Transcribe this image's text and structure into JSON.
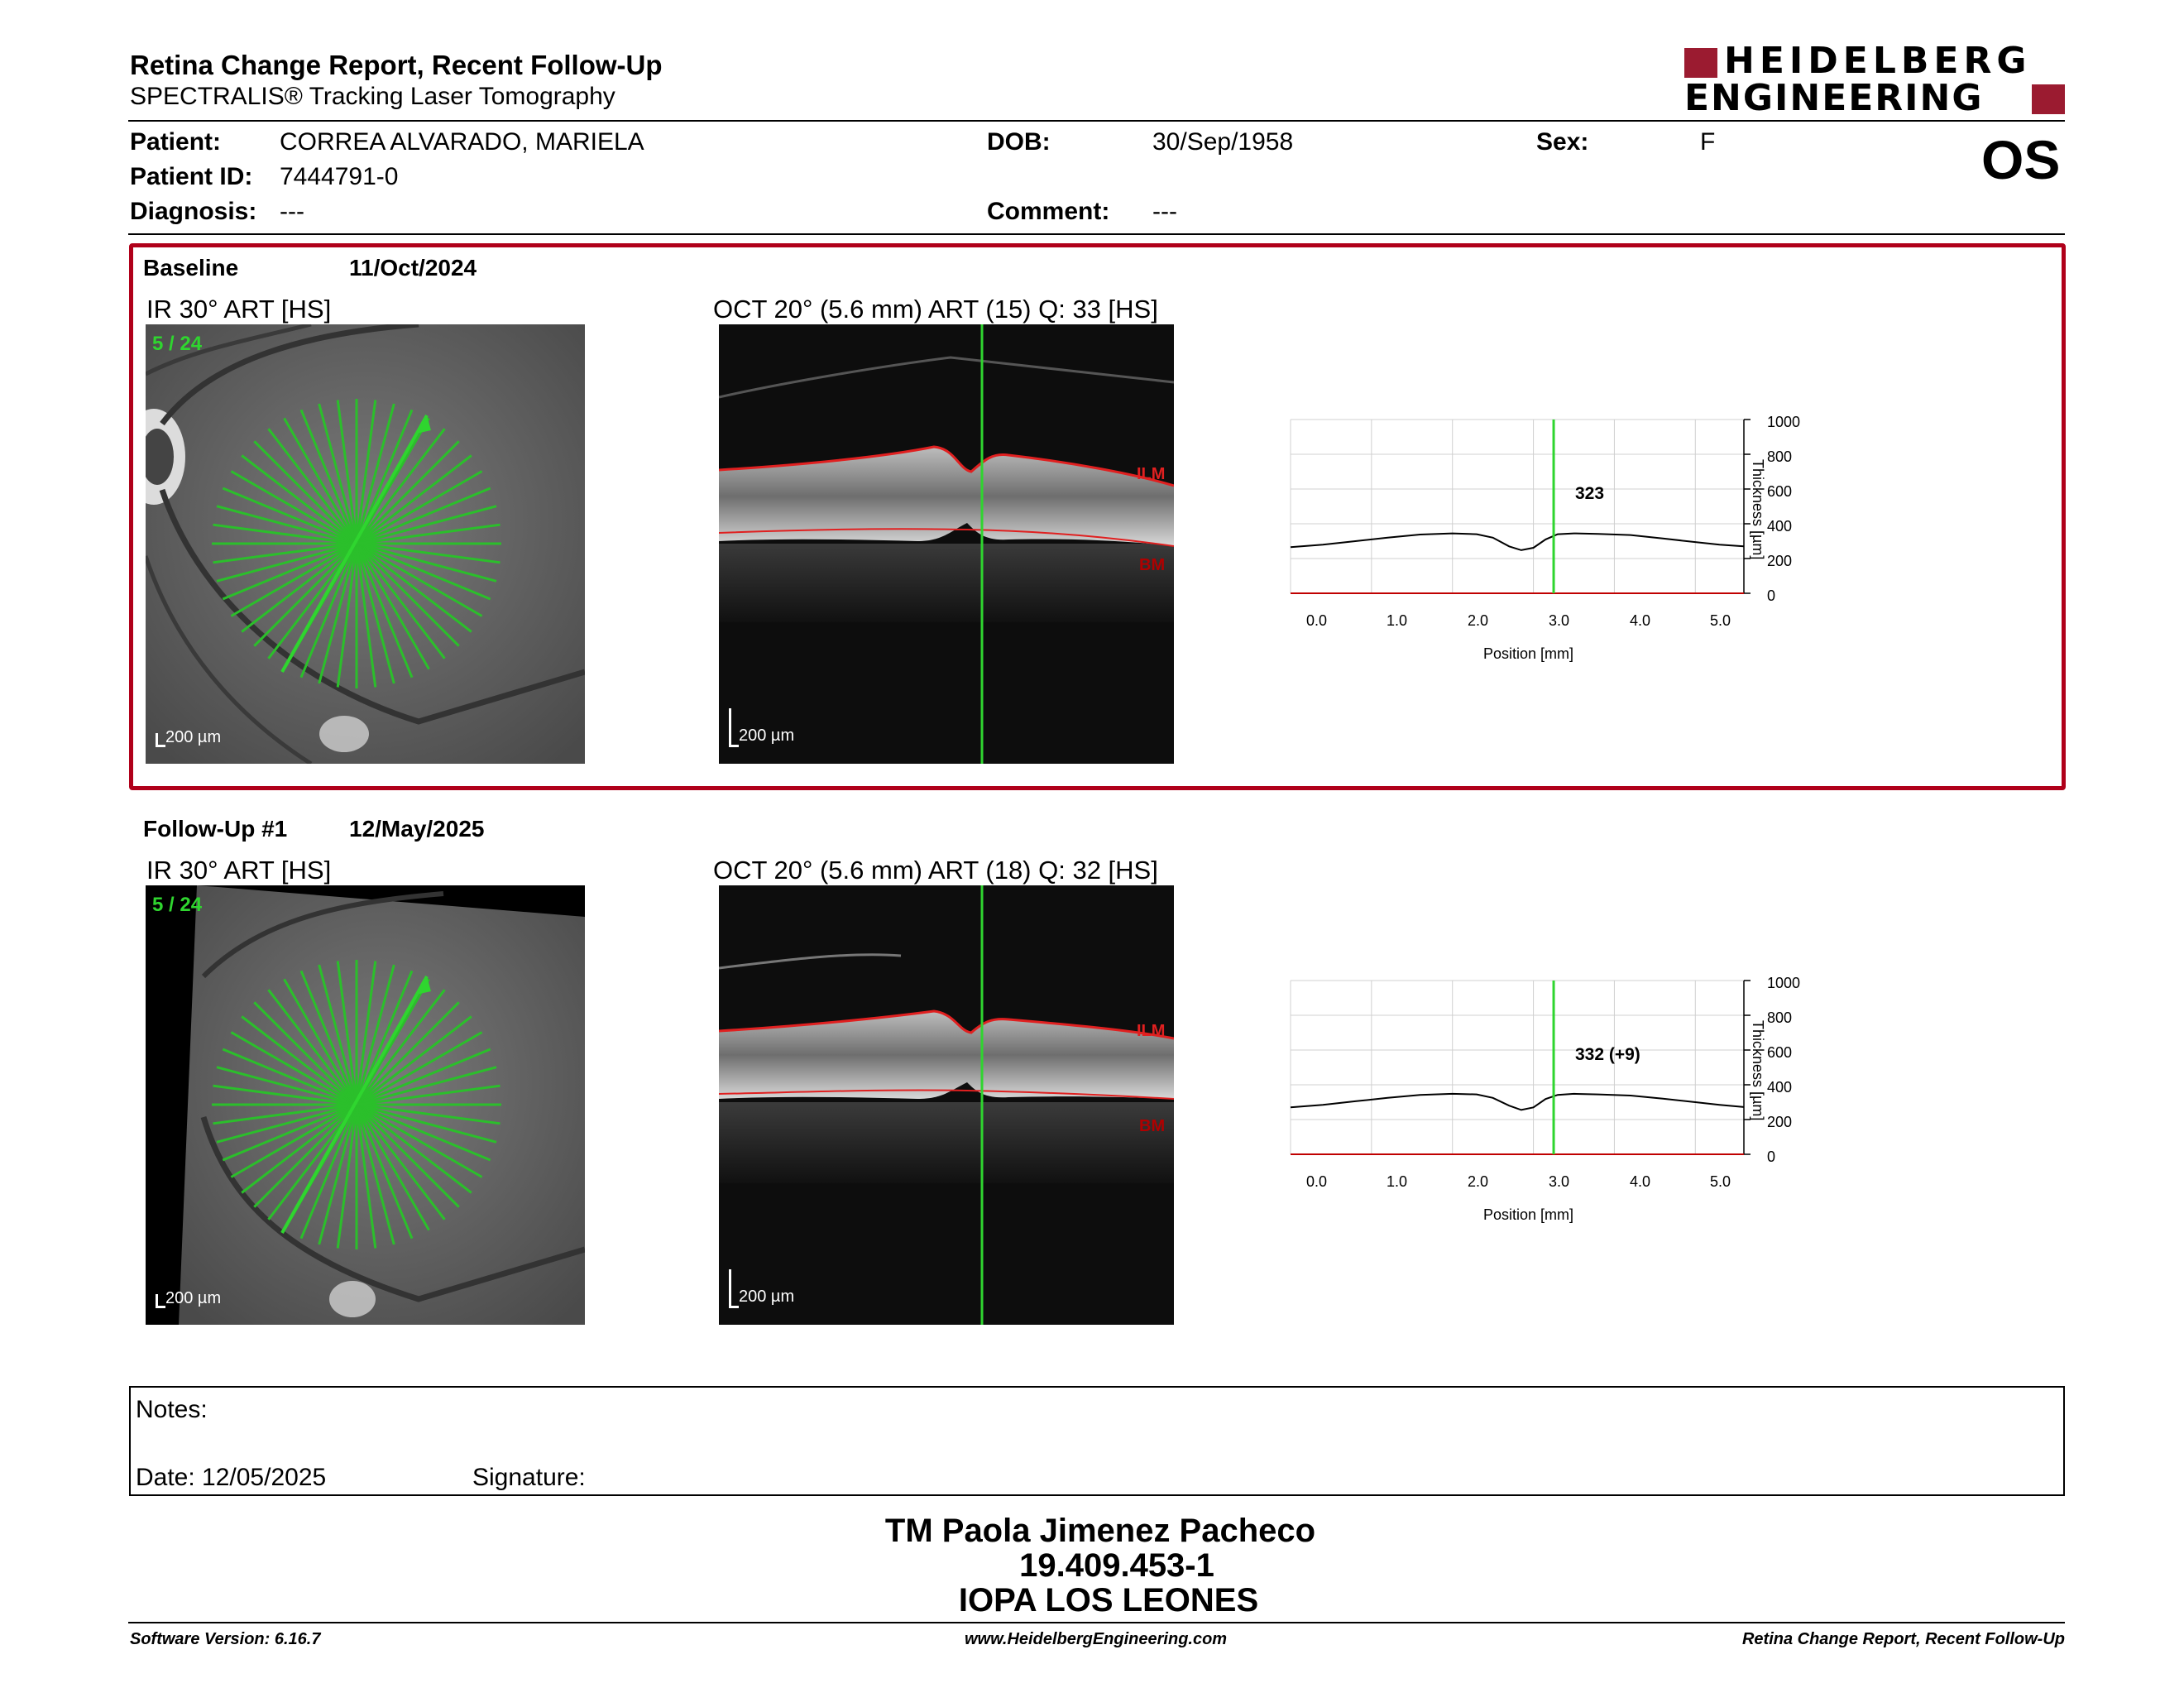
{
  "header": {
    "title": "Retina Change Report, Recent Follow-Up",
    "subtitle": "SPECTRALIS® Tracking Laser Tomography",
    "logo_line1": "HEIDELBERG",
    "logo_line2": "ENGINEERING",
    "eye": "OS"
  },
  "patient": {
    "patient_label": "Patient:",
    "patient_name": "CORREA ALVARADO, MARIELA",
    "dob_label": "DOB:",
    "dob": "30/Sep/1958",
    "sex_label": "Sex:",
    "sex": "F",
    "id_label": "Patient ID:",
    "id": "7444791-0",
    "diagnosis_label": "Diagnosis:",
    "diagnosis": "---",
    "comment_label": "Comment:",
    "comment": "---"
  },
  "baseline": {
    "label": "Baseline",
    "date": "11/Oct/2024",
    "ir_title": "IR 30° ART [HS]",
    "ir_counter": "5 / 24",
    "ir_scale": "200 µm",
    "oct_title": "OCT 20° (5.6 mm) ART (15) Q: 33 [HS]",
    "oct_scale": "200 µm",
    "ilm": "ILM",
    "bm": "BM",
    "chart_value_label": "323"
  },
  "followup": {
    "label": "Follow-Up #1",
    "date": "12/May/2025",
    "ir_title": "IR 30° ART [HS]",
    "ir_counter": "5 / 24",
    "ir_scale": "200 µm",
    "oct_title": "OCT 20° (5.6 mm) ART (18) Q: 32 [HS]",
    "oct_scale": "200 µm",
    "ilm": "ILM",
    "bm": "BM",
    "chart_value_label": "332 (+9)"
  },
  "chart_axes": {
    "xlabel": "Position [mm]",
    "ylabel": "Thickness [µm]",
    "xticks": [
      "0.0",
      "1.0",
      "2.0",
      "3.0",
      "4.0",
      "5.0"
    ],
    "yticks": [
      "0",
      "200",
      "400",
      "600",
      "800",
      "1000"
    ]
  },
  "chart_data": [
    {
      "type": "line",
      "xlabel": "Position [mm]",
      "ylabel": "Thickness [µm]",
      "xlim": [
        0,
        5.6
      ],
      "ylim": [
        0,
        1000
      ],
      "cursor_x": 3.25,
      "cursor_label": "323",
      "series": [
        {
          "x": [
            0,
            0.4,
            0.8,
            1.2,
            1.6,
            2.0,
            2.3,
            2.5,
            2.7,
            2.85,
            3.0,
            3.15,
            3.3,
            3.5,
            3.8,
            4.2,
            4.6,
            5.0,
            5.3,
            5.6
          ],
          "values": [
            265,
            280,
            300,
            320,
            338,
            345,
            340,
            320,
            270,
            248,
            262,
            310,
            340,
            345,
            342,
            335,
            315,
            295,
            280,
            270
          ]
        }
      ]
    },
    {
      "type": "line",
      "xlabel": "Position [mm]",
      "ylabel": "Thickness [µm]",
      "xlim": [
        0,
        5.6
      ],
      "ylim": [
        0,
        1000
      ],
      "cursor_x": 3.25,
      "cursor_label": "332 (+9)",
      "series": [
        {
          "x": [
            0,
            0.4,
            0.8,
            1.2,
            1.6,
            2.0,
            2.3,
            2.5,
            2.7,
            2.85,
            3.0,
            3.15,
            3.3,
            3.5,
            3.8,
            4.2,
            4.6,
            5.0,
            5.3,
            5.6
          ],
          "values": [
            270,
            285,
            305,
            325,
            342,
            348,
            345,
            325,
            280,
            255,
            270,
            318,
            342,
            348,
            345,
            338,
            320,
            300,
            285,
            272
          ]
        }
      ]
    }
  ],
  "notes": {
    "notes_label": "Notes:",
    "date_label": "Date: 12/05/2025",
    "signature_label": "Signature:"
  },
  "signature_block": {
    "name": "TM Paola Jimenez Pacheco",
    "id": "19.409.453-1",
    "institution": "IOPA LOS LEONES"
  },
  "footer": {
    "software": "Software Version: 6.16.7",
    "website": "www.HeidelbergEngineering.com",
    "report_name": "Retina Change Report, Recent Follow-Up"
  },
  "colors": {
    "brand": "#9b1b30",
    "border": "#b0001a",
    "green": "#2fd52f",
    "red_line": "#e02020"
  }
}
